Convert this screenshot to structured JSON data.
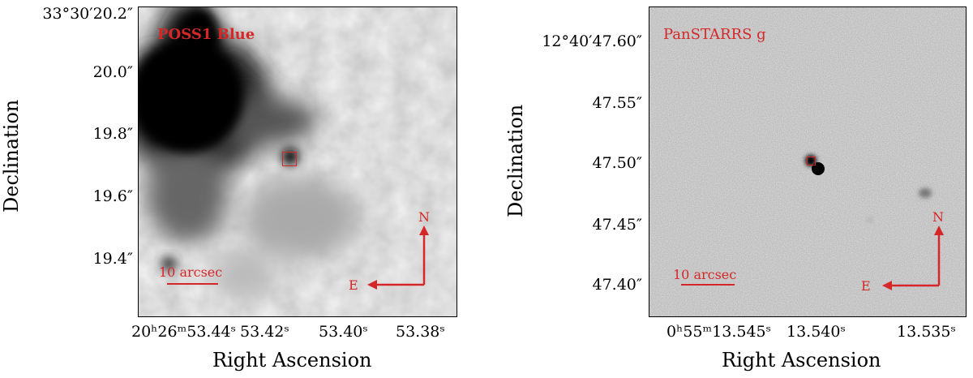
{
  "left_panel": {
    "title": "POSS1 Blue",
    "y_ticks": [
      "33°30′20.2″",
      "20.0″",
      "19.8″",
      "19.6″",
      "19.4″"
    ],
    "x_ticks": [
      "20ʰ26ᵐ53.44ˢ",
      "53.42ˢ",
      "53.40ˢ",
      "53.38ˢ"
    ],
    "xlabel": "Right Ascension",
    "ylabel": "Declination",
    "scale_label": "10 arcsec",
    "compass_north": "N",
    "compass_east": "E"
  },
  "right_panel": {
    "title": "PanSTARRS g",
    "y_ticks": [
      "12°40′47.60″",
      "47.55″",
      "47.50″",
      "47.45″",
      "47.40″"
    ],
    "x_ticks": [
      "0ʰ55ᵐ13.545ˢ",
      "13.540ˢ",
      "13.535ˢ"
    ],
    "xlabel": "Right Ascension",
    "ylabel": "Declination",
    "scale_label": "10 arcsec",
    "compass_north": "N",
    "compass_east": "E"
  },
  "colors": {
    "annotation": "#d62728",
    "axis": "#000000",
    "background": "#ffffff"
  }
}
